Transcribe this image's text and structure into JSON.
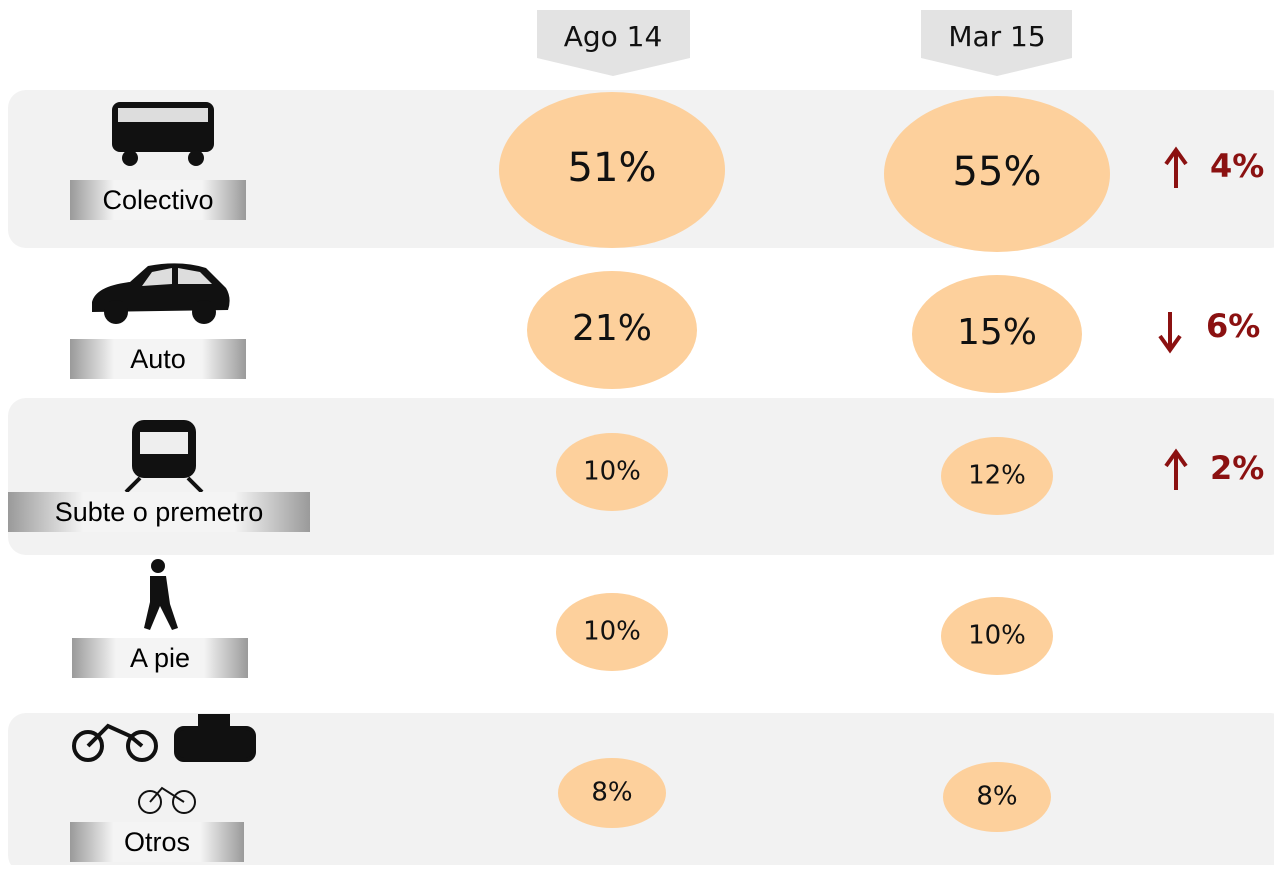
{
  "header": {
    "columns": [
      "Ago 14",
      "Mar 15"
    ]
  },
  "rows": [
    {
      "label": "Colectivo",
      "values": [
        "51%",
        "55%"
      ],
      "change": "4%",
      "direction": "up"
    },
    {
      "label": "Auto",
      "values": [
        "21%",
        "15%"
      ],
      "change": "6%",
      "direction": "down"
    },
    {
      "label": "Subte o premetro",
      "values": [
        "10%",
        "12%"
      ],
      "change": "2%",
      "direction": "up"
    },
    {
      "label": "A pie",
      "values": [
        "10%",
        "10%"
      ]
    },
    {
      "label": "Otros",
      "values": [
        "8%",
        "8%"
      ]
    }
  ]
}
